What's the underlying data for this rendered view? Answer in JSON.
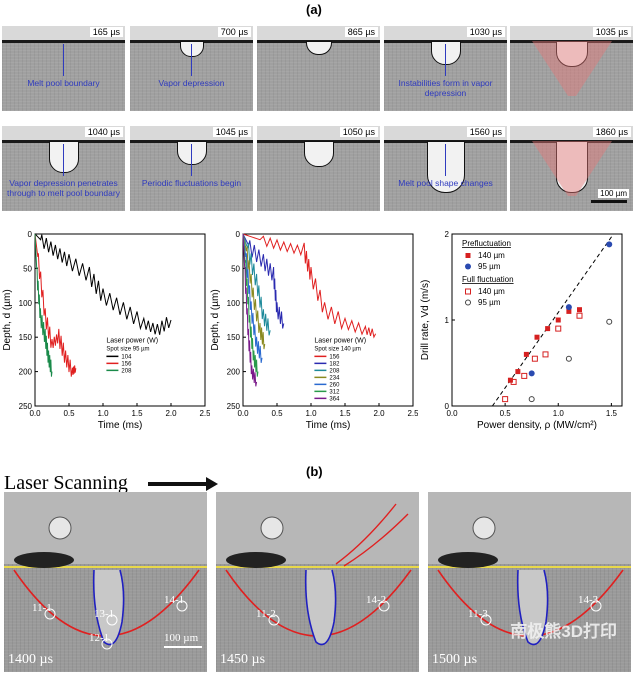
{
  "panel_a_label": "(a)",
  "panel_b_label": "(b)",
  "row1": [
    {
      "time": "165 µs",
      "note": "Melt pool boundary"
    },
    {
      "time": "700 µs",
      "note": "Vapor depression"
    },
    {
      "time": "865 µs",
      "note": ""
    },
    {
      "time": "1030 µs",
      "note": "Instabilities form in vapor depression"
    },
    {
      "time": "1035 µs",
      "note": ""
    }
  ],
  "row2": [
    {
      "time": "1040 µs",
      "note": "Vapor depression penetrates through to melt pool boundary"
    },
    {
      "time": "1045 µs",
      "note": "Periodic fluctuations begin"
    },
    {
      "time": "1050 µs",
      "note": ""
    },
    {
      "time": "1560 µs",
      "note": "Melt pool shape changes"
    },
    {
      "time": "1860 µs",
      "note": ""
    }
  ],
  "scale_bar_a": "100 µm",
  "chart_data": [
    {
      "type": "line",
      "xlabel": "Time (ms)",
      "ylabel": "Depth, d (µm)",
      "xlim": [
        0,
        2.5
      ],
      "ylim": [
        250,
        0
      ],
      "xticks": [
        "0.0",
        "0.5",
        "1.0",
        "1.5",
        "2.0",
        "2.5"
      ],
      "yticks": [
        "0",
        "50",
        "100",
        "150",
        "200",
        "250"
      ],
      "legend_title": "Laser power (W)",
      "legend_subtitle": "Spot size 95 µm",
      "series": [
        {
          "name": "104",
          "color": "#000000",
          "x": [
            0,
            0.1,
            0.3,
            0.5,
            0.8,
            1.0,
            1.3,
            1.6,
            1.8,
            2.0
          ],
          "y": [
            0,
            10,
            25,
            40,
            60,
            90,
            110,
            130,
            140,
            125
          ]
        },
        {
          "name": "156",
          "color": "#e02020",
          "x": [
            0,
            0.05,
            0.15,
            0.25,
            0.35,
            0.45,
            0.55,
            0.6
          ],
          "y": [
            0,
            40,
            120,
            160,
            150,
            180,
            200,
            195
          ]
        },
        {
          "name": "208",
          "color": "#1a8a4a",
          "x": [
            0,
            0.03,
            0.08,
            0.15,
            0.2,
            0.25
          ],
          "y": [
            0,
            60,
            120,
            150,
            180,
            200
          ]
        }
      ]
    },
    {
      "type": "line",
      "xlabel": "Time (ms)",
      "ylabel": "Depth, d (µm)",
      "xlim": [
        0,
        2.5
      ],
      "ylim": [
        250,
        0
      ],
      "xticks": [
        "0.0",
        "0.5",
        "1.0",
        "1.5",
        "2.0",
        "2.5"
      ],
      "yticks": [
        "0",
        "50",
        "100",
        "150",
        "200",
        "250"
      ],
      "legend_title": "Laser power (W)",
      "legend_subtitle": "Spot size 140 µm",
      "series": [
        {
          "name": "156",
          "color": "#e02020",
          "x": [
            0,
            0.3,
            0.6,
            0.9,
            1.0,
            1.2,
            1.5,
            1.8,
            1.95
          ],
          "y": [
            0,
            10,
            18,
            25,
            60,
            110,
            130,
            140,
            145
          ]
        },
        {
          "name": "182",
          "color": "#2a2ab0",
          "x": [
            0,
            0.1,
            0.3,
            0.45,
            0.5,
            0.6
          ],
          "y": [
            0,
            20,
            40,
            60,
            110,
            130
          ]
        },
        {
          "name": "208",
          "color": "#1e8a9a",
          "x": [
            0,
            0.08,
            0.2,
            0.3,
            0.4
          ],
          "y": [
            0,
            25,
            70,
            120,
            140
          ]
        },
        {
          "name": "234",
          "color": "#8a8a20",
          "x": [
            0,
            0.06,
            0.15,
            0.25,
            0.32
          ],
          "y": [
            0,
            30,
            90,
            140,
            160
          ]
        },
        {
          "name": "260",
          "color": "#2a6ad0",
          "x": [
            0,
            0.05,
            0.12,
            0.2,
            0.28
          ],
          "y": [
            0,
            40,
            110,
            160,
            180
          ]
        },
        {
          "name": "312",
          "color": "#2a9a4a",
          "x": [
            0,
            0.04,
            0.1,
            0.16,
            0.22
          ],
          "y": [
            0,
            50,
            130,
            180,
            200
          ]
        },
        {
          "name": "364",
          "color": "#7a1a8a",
          "x": [
            0,
            0.03,
            0.08,
            0.13,
            0.2
          ],
          "y": [
            0,
            60,
            150,
            200,
            215
          ]
        }
      ]
    },
    {
      "type": "scatter",
      "xlabel": "Power density, ρ (MW/cm²)",
      "ylabel": "Drill rate, Vd (m/s)",
      "xlim": [
        0.0,
        1.6
      ],
      "ylim": [
        0,
        2
      ],
      "xticks": [
        "0.0",
        "0.5",
        "1.0",
        "1.5"
      ],
      "yticks": [
        "0",
        "1",
        "2"
      ],
      "legend_group1": "Prefluctuation",
      "legend_group2": "Full fluctuation",
      "series": [
        {
          "name": "140 µm",
          "group": "Prefluctuation",
          "marker": "filled-square",
          "color": "#d62020",
          "x": [
            0.55,
            0.62,
            0.7,
            0.8,
            0.9,
            1.0,
            1.1,
            1.2
          ],
          "y": [
            0.3,
            0.4,
            0.6,
            0.8,
            0.9,
            1.0,
            1.1,
            1.12
          ]
        },
        {
          "name": "95 µm",
          "group": "Prefluctuation",
          "marker": "filled-circle",
          "color": "#2a4ab0",
          "x": [
            0.75,
            1.1,
            1.48
          ],
          "y": [
            0.38,
            1.15,
            1.88
          ]
        },
        {
          "name": "140 µm",
          "group": "Full fluctuation",
          "marker": "open-square",
          "color": "#d62020",
          "x": [
            0.5,
            0.58,
            0.68,
            0.78,
            0.88,
            1.0,
            1.2
          ],
          "y": [
            0.08,
            0.28,
            0.35,
            0.55,
            0.6,
            0.9,
            1.05
          ]
        },
        {
          "name": "95 µm",
          "group": "Full fluctuation",
          "marker": "open-circle",
          "color": "#444444",
          "x": [
            0.75,
            1.1,
            1.48
          ],
          "y": [
            0.08,
            0.55,
            0.98
          ]
        }
      ]
    }
  ],
  "laser_scanning_label": "Laser Scanning",
  "row3": [
    {
      "time": "1400 µs",
      "labels": [
        "11-1",
        "12-1",
        "13-1",
        "14-1"
      ]
    },
    {
      "time": "1450 µs",
      "labels": [
        "11-2",
        "14-2"
      ]
    },
    {
      "time": "1500 µs",
      "labels": [
        "11-3",
        "14-3"
      ]
    }
  ],
  "scale_bar_b": "100 µm",
  "watermark": "南极熊3D打印"
}
